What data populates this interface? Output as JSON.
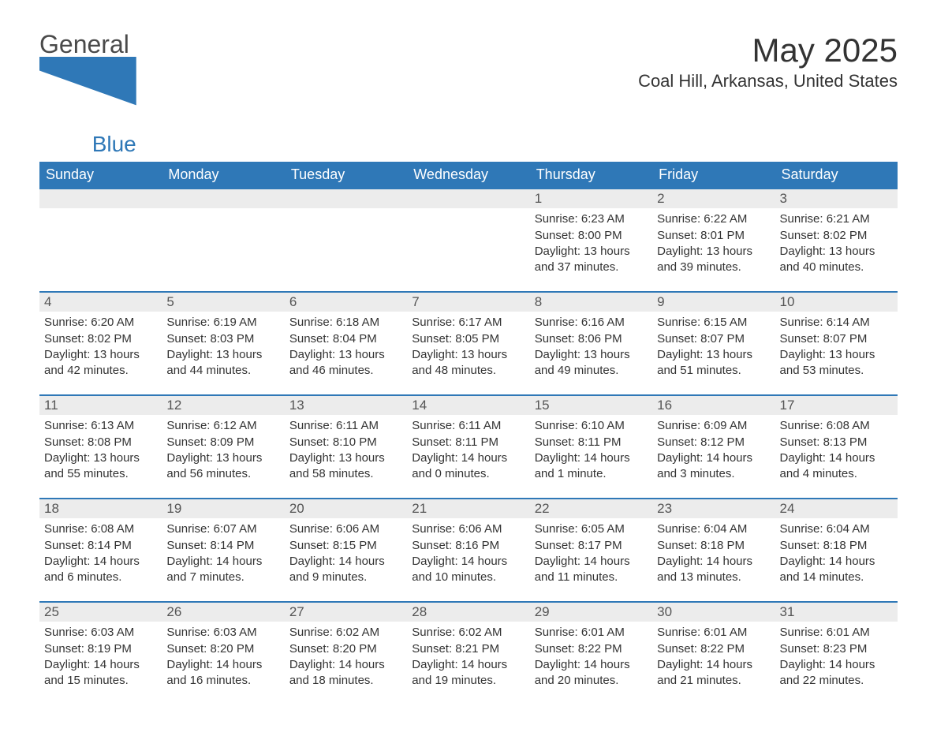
{
  "logo": {
    "line1": "General",
    "line2": "Blue"
  },
  "title": "May 2025",
  "location": "Coal Hill, Arkansas, United States",
  "colors": {
    "header_bg": "#2f78b7",
    "header_text": "#ffffff",
    "daynum_bg": "#ececec",
    "border": "#2f78b7",
    "body_text": "#333333"
  },
  "weekdays": [
    "Sunday",
    "Monday",
    "Tuesday",
    "Wednesday",
    "Thursday",
    "Friday",
    "Saturday"
  ],
  "weeks": [
    [
      {
        "day": "",
        "lines": []
      },
      {
        "day": "",
        "lines": []
      },
      {
        "day": "",
        "lines": []
      },
      {
        "day": "",
        "lines": []
      },
      {
        "day": "1",
        "lines": [
          "Sunrise: 6:23 AM",
          "Sunset: 8:00 PM",
          "Daylight: 13 hours",
          "and 37 minutes."
        ]
      },
      {
        "day": "2",
        "lines": [
          "Sunrise: 6:22 AM",
          "Sunset: 8:01 PM",
          "Daylight: 13 hours",
          "and 39 minutes."
        ]
      },
      {
        "day": "3",
        "lines": [
          "Sunrise: 6:21 AM",
          "Sunset: 8:02 PM",
          "Daylight: 13 hours",
          "and 40 minutes."
        ]
      }
    ],
    [
      {
        "day": "4",
        "lines": [
          "Sunrise: 6:20 AM",
          "Sunset: 8:02 PM",
          "Daylight: 13 hours",
          "and 42 minutes."
        ]
      },
      {
        "day": "5",
        "lines": [
          "Sunrise: 6:19 AM",
          "Sunset: 8:03 PM",
          "Daylight: 13 hours",
          "and 44 minutes."
        ]
      },
      {
        "day": "6",
        "lines": [
          "Sunrise: 6:18 AM",
          "Sunset: 8:04 PM",
          "Daylight: 13 hours",
          "and 46 minutes."
        ]
      },
      {
        "day": "7",
        "lines": [
          "Sunrise: 6:17 AM",
          "Sunset: 8:05 PM",
          "Daylight: 13 hours",
          "and 48 minutes."
        ]
      },
      {
        "day": "8",
        "lines": [
          "Sunrise: 6:16 AM",
          "Sunset: 8:06 PM",
          "Daylight: 13 hours",
          "and 49 minutes."
        ]
      },
      {
        "day": "9",
        "lines": [
          "Sunrise: 6:15 AM",
          "Sunset: 8:07 PM",
          "Daylight: 13 hours",
          "and 51 minutes."
        ]
      },
      {
        "day": "10",
        "lines": [
          "Sunrise: 6:14 AM",
          "Sunset: 8:07 PM",
          "Daylight: 13 hours",
          "and 53 minutes."
        ]
      }
    ],
    [
      {
        "day": "11",
        "lines": [
          "Sunrise: 6:13 AM",
          "Sunset: 8:08 PM",
          "Daylight: 13 hours",
          "and 55 minutes."
        ]
      },
      {
        "day": "12",
        "lines": [
          "Sunrise: 6:12 AM",
          "Sunset: 8:09 PM",
          "Daylight: 13 hours",
          "and 56 minutes."
        ]
      },
      {
        "day": "13",
        "lines": [
          "Sunrise: 6:11 AM",
          "Sunset: 8:10 PM",
          "Daylight: 13 hours",
          "and 58 minutes."
        ]
      },
      {
        "day": "14",
        "lines": [
          "Sunrise: 6:11 AM",
          "Sunset: 8:11 PM",
          "Daylight: 14 hours",
          "and 0 minutes."
        ]
      },
      {
        "day": "15",
        "lines": [
          "Sunrise: 6:10 AM",
          "Sunset: 8:11 PM",
          "Daylight: 14 hours",
          "and 1 minute."
        ]
      },
      {
        "day": "16",
        "lines": [
          "Sunrise: 6:09 AM",
          "Sunset: 8:12 PM",
          "Daylight: 14 hours",
          "and 3 minutes."
        ]
      },
      {
        "day": "17",
        "lines": [
          "Sunrise: 6:08 AM",
          "Sunset: 8:13 PM",
          "Daylight: 14 hours",
          "and 4 minutes."
        ]
      }
    ],
    [
      {
        "day": "18",
        "lines": [
          "Sunrise: 6:08 AM",
          "Sunset: 8:14 PM",
          "Daylight: 14 hours",
          "and 6 minutes."
        ]
      },
      {
        "day": "19",
        "lines": [
          "Sunrise: 6:07 AM",
          "Sunset: 8:14 PM",
          "Daylight: 14 hours",
          "and 7 minutes."
        ]
      },
      {
        "day": "20",
        "lines": [
          "Sunrise: 6:06 AM",
          "Sunset: 8:15 PM",
          "Daylight: 14 hours",
          "and 9 minutes."
        ]
      },
      {
        "day": "21",
        "lines": [
          "Sunrise: 6:06 AM",
          "Sunset: 8:16 PM",
          "Daylight: 14 hours",
          "and 10 minutes."
        ]
      },
      {
        "day": "22",
        "lines": [
          "Sunrise: 6:05 AM",
          "Sunset: 8:17 PM",
          "Daylight: 14 hours",
          "and 11 minutes."
        ]
      },
      {
        "day": "23",
        "lines": [
          "Sunrise: 6:04 AM",
          "Sunset: 8:18 PM",
          "Daylight: 14 hours",
          "and 13 minutes."
        ]
      },
      {
        "day": "24",
        "lines": [
          "Sunrise: 6:04 AM",
          "Sunset: 8:18 PM",
          "Daylight: 14 hours",
          "and 14 minutes."
        ]
      }
    ],
    [
      {
        "day": "25",
        "lines": [
          "Sunrise: 6:03 AM",
          "Sunset: 8:19 PM",
          "Daylight: 14 hours",
          "and 15 minutes."
        ]
      },
      {
        "day": "26",
        "lines": [
          "Sunrise: 6:03 AM",
          "Sunset: 8:20 PM",
          "Daylight: 14 hours",
          "and 16 minutes."
        ]
      },
      {
        "day": "27",
        "lines": [
          "Sunrise: 6:02 AM",
          "Sunset: 8:20 PM",
          "Daylight: 14 hours",
          "and 18 minutes."
        ]
      },
      {
        "day": "28",
        "lines": [
          "Sunrise: 6:02 AM",
          "Sunset: 8:21 PM",
          "Daylight: 14 hours",
          "and 19 minutes."
        ]
      },
      {
        "day": "29",
        "lines": [
          "Sunrise: 6:01 AM",
          "Sunset: 8:22 PM",
          "Daylight: 14 hours",
          "and 20 minutes."
        ]
      },
      {
        "day": "30",
        "lines": [
          "Sunrise: 6:01 AM",
          "Sunset: 8:22 PM",
          "Daylight: 14 hours",
          "and 21 minutes."
        ]
      },
      {
        "day": "31",
        "lines": [
          "Sunrise: 6:01 AM",
          "Sunset: 8:23 PM",
          "Daylight: 14 hours",
          "and 22 minutes."
        ]
      }
    ]
  ]
}
